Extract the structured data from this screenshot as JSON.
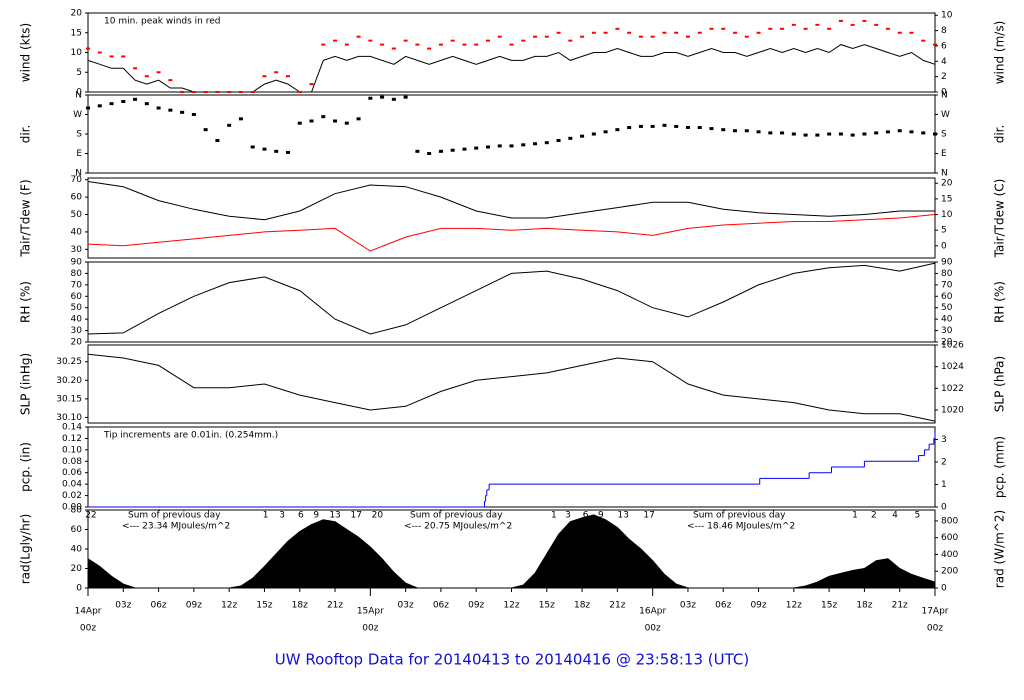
{
  "title": "UW Rooftop Data for 20140413  to  20140416 @ 23:58:13  (UTC)",
  "chart_data": [
    {
      "type": "line",
      "ylabel": "wind (kts)",
      "y2label": "wind (m/s)",
      "annotation": "10 min. peak winds in red",
      "annotation_color": "#ff0000",
      "xlim": [
        0,
        72
      ],
      "ylim": [
        0,
        20
      ],
      "yticks": [
        0,
        5,
        10,
        15,
        20
      ],
      "y2lim": [
        0,
        10.29
      ],
      "y2ticks": [
        0,
        2,
        4,
        6,
        8,
        10
      ],
      "x": [
        0,
        1,
        2,
        3,
        4,
        5,
        6,
        7,
        8,
        9,
        10,
        11,
        12,
        13,
        14,
        15,
        16,
        17,
        18,
        19,
        20,
        21,
        22,
        23,
        24,
        25,
        26,
        27,
        28,
        29,
        30,
        31,
        32,
        33,
        34,
        35,
        36,
        37,
        38,
        39,
        40,
        41,
        42,
        43,
        44,
        45,
        46,
        47,
        48,
        49,
        50,
        51,
        52,
        53,
        54,
        55,
        56,
        57,
        58,
        59,
        60,
        61,
        62,
        63,
        64,
        65,
        66,
        67,
        68,
        69,
        70,
        71,
        72
      ],
      "series": [
        {
          "color": "#000000",
          "style": "line",
          "values": [
            8,
            7,
            6,
            6,
            3,
            2,
            3,
            1,
            1,
            0,
            0,
            0,
            0,
            0,
            0,
            2,
            3,
            2,
            0,
            0,
            8,
            9,
            8,
            9,
            9,
            8,
            7,
            9,
            8,
            7,
            8,
            9,
            8,
            7,
            8,
            9,
            8,
            8,
            9,
            9,
            10,
            8,
            9,
            10,
            10,
            11,
            10,
            9,
            9,
            10,
            10,
            9,
            10,
            11,
            10,
            10,
            9,
            10,
            11,
            10,
            11,
            10,
            11,
            10,
            12,
            11,
            12,
            11,
            10,
            9,
            10,
            8,
            7
          ]
        },
        {
          "color": "#ff0000",
          "style": "points",
          "values": [
            11,
            10,
            9,
            9,
            6,
            4,
            5,
            3,
            0,
            0,
            0,
            0,
            0,
            0,
            0,
            4,
            5,
            4,
            0,
            2,
            12,
            13,
            12,
            14,
            13,
            12,
            11,
            13,
            12,
            11,
            12,
            13,
            12,
            12,
            13,
            14,
            12,
            13,
            14,
            14,
            15,
            13,
            14,
            15,
            15,
            16,
            15,
            14,
            14,
            15,
            15,
            14,
            15,
            16,
            16,
            15,
            14,
            15,
            16,
            16,
            17,
            16,
            17,
            16,
            18,
            17,
            18,
            17,
            16,
            15,
            15,
            13,
            12
          ]
        }
      ]
    },
    {
      "type": "scatter",
      "ylabel": "dir.",
      "y2label": "dir.",
      "xlim": [
        0,
        72
      ],
      "ylim": [
        0,
        360
      ],
      "yticks": [
        {
          "value": 0,
          "label": "N"
        },
        {
          "value": 90,
          "label": "E"
        },
        {
          "value": 180,
          "label": "S"
        },
        {
          "value": 270,
          "label": "W"
        },
        {
          "value": 360,
          "label": "N"
        }
      ],
      "y2lim": [
        0,
        360
      ],
      "y2ticks": [
        {
          "value": 0,
          "label": "N"
        },
        {
          "value": 90,
          "label": "E"
        },
        {
          "value": 180,
          "label": "S"
        },
        {
          "value": 270,
          "label": "W"
        },
        {
          "value": 360,
          "label": "N"
        }
      ],
      "x": [
        0,
        1,
        2,
        3,
        4,
        5,
        6,
        7,
        8,
        9,
        10,
        11,
        12,
        13,
        14,
        15,
        16,
        17,
        18,
        19,
        20,
        21,
        22,
        23,
        24,
        25,
        26,
        27,
        28,
        29,
        30,
        31,
        32,
        33,
        34,
        35,
        36,
        37,
        38,
        39,
        40,
        41,
        42,
        43,
        44,
        45,
        46,
        47,
        48,
        49,
        50,
        51,
        52,
        53,
        54,
        55,
        56,
        57,
        58,
        59,
        60,
        61,
        62,
        63,
        64,
        65,
        66,
        67,
        68,
        69,
        70,
        71,
        72
      ],
      "series": [
        {
          "color": "#000000",
          "values": [
            300,
            310,
            320,
            330,
            340,
            320,
            300,
            290,
            280,
            270,
            200,
            150,
            220,
            250,
            120,
            110,
            100,
            95,
            230,
            240,
            260,
            240,
            230,
            250,
            345,
            350,
            340,
            350,
            100,
            90,
            100,
            105,
            110,
            115,
            120,
            125,
            125,
            130,
            135,
            140,
            150,
            160,
            170,
            180,
            190,
            200,
            210,
            215,
            215,
            220,
            215,
            210,
            210,
            205,
            200,
            195,
            195,
            190,
            185,
            185,
            180,
            175,
            175,
            180,
            180,
            175,
            180,
            185,
            190,
            195,
            190,
            185,
            180
          ]
        }
      ]
    },
    {
      "type": "line",
      "ylabel": "Tair/Tdew (F)",
      "y2label": "Tair/Tdew (C)",
      "xlim": [
        0,
        72
      ],
      "ylim": [
        25,
        71
      ],
      "yticks": [
        30,
        40,
        50,
        60,
        70
      ],
      "y2lim": [
        -3.89,
        21.67
      ],
      "y2ticks": [
        0,
        5,
        10,
        15,
        20
      ],
      "x": [
        0,
        3,
        6,
        9,
        12,
        15,
        18,
        21,
        24,
        27,
        30,
        33,
        36,
        39,
        42,
        45,
        48,
        51,
        54,
        57,
        60,
        63,
        66,
        69,
        72
      ],
      "series": [
        {
          "color": "#000000",
          "values": [
            69,
            66,
            58,
            53,
            49,
            47,
            52,
            62,
            67,
            66,
            60,
            52,
            48,
            48,
            51,
            54,
            57,
            57,
            53,
            51,
            50,
            49,
            50,
            52,
            52
          ]
        },
        {
          "color": "#ff0000",
          "values": [
            33,
            32,
            34,
            36,
            38,
            40,
            41,
            42,
            29,
            37,
            42,
            42,
            41,
            42,
            41,
            40,
            38,
            42,
            44,
            45,
            46,
            46,
            47,
            48,
            50
          ]
        }
      ]
    },
    {
      "type": "line",
      "ylabel": "RH (%)",
      "y2label": "RH (%)",
      "xlim": [
        0,
        72
      ],
      "ylim": [
        20,
        90
      ],
      "yticks": [
        20,
        30,
        40,
        50,
        60,
        70,
        80,
        90
      ],
      "y2lim": [
        20,
        90
      ],
      "y2ticks": [
        20,
        30,
        40,
        50,
        60,
        70,
        80,
        90
      ],
      "x": [
        0,
        3,
        6,
        9,
        12,
        15,
        18,
        21,
        24,
        27,
        30,
        33,
        36,
        39,
        42,
        45,
        48,
        51,
        54,
        57,
        60,
        63,
        66,
        69,
        72
      ],
      "series": [
        {
          "color": "#000000",
          "values": [
            27,
            28,
            45,
            60,
            72,
            77,
            65,
            40,
            27,
            35,
            50,
            65,
            80,
            82,
            75,
            65,
            50,
            42,
            55,
            70,
            80,
            85,
            87,
            82,
            89
          ]
        }
      ]
    },
    {
      "type": "line",
      "ylabel": "SLP (inHg)",
      "y2label": "SLP (hPa)",
      "xlim": [
        0,
        72
      ],
      "ylim": [
        30.085,
        30.295
      ],
      "yticks": [
        {
          "value": 30.1,
          "label": "30.10"
        },
        30.15,
        {
          "value": 30.2,
          "label": "30.20"
        },
        30.25
      ],
      "y2lim": [
        1018.8,
        1026.0
      ],
      "y2ticks": [
        1020,
        1022,
        1024,
        1026
      ],
      "x": [
        0,
        3,
        6,
        9,
        12,
        15,
        18,
        21,
        24,
        27,
        30,
        33,
        36,
        39,
        42,
        45,
        48,
        51,
        54,
        57,
        60,
        63,
        66,
        69,
        72
      ],
      "series": [
        {
          "color": "#000000",
          "values": [
            30.27,
            30.26,
            30.24,
            30.18,
            30.18,
            30.19,
            30.16,
            30.14,
            30.12,
            30.13,
            30.17,
            30.2,
            30.21,
            30.22,
            30.24,
            30.26,
            30.25,
            30.19,
            30.16,
            30.15,
            30.14,
            30.12,
            30.11,
            30.11,
            30.09
          ]
        }
      ]
    },
    {
      "type": "step",
      "ylabel": "pcp. (in)",
      "y2label": "pcp. (mm)",
      "annotation": "Tip increments are 0.01in. (0.254mm.)",
      "annotation_color": "#0000cc",
      "xlim": [
        0,
        72
      ],
      "ylim": [
        0,
        0.14
      ],
      "yticks": [
        {
          "value": 0,
          "label": "0.00"
        },
        0.02,
        0.04,
        0.06,
        0.08,
        {
          "value": 0.1,
          "label": "0.10"
        },
        0.12,
        0.14
      ],
      "y2lim": [
        0,
        3.556
      ],
      "y2ticks": [
        0,
        1,
        2,
        3
      ],
      "x": [
        0,
        33.7,
        33.8,
        33.9,
        34.1,
        57.1,
        61.3,
        63.2,
        66.0,
        70.6,
        71.1,
        71.5,
        71.9,
        72
      ],
      "series": [
        {
          "color": "#0000ff",
          "values": [
            0,
            0.01,
            0.02,
            0.03,
            0.04,
            0.05,
            0.06,
            0.07,
            0.08,
            0.09,
            0.1,
            0.11,
            0.12,
            0.13
          ]
        }
      ]
    },
    {
      "type": "area",
      "ylabel": "rad(Lgly/hr)",
      "y2label": "rad (W/m^2)",
      "annotation_color": "#9900cc",
      "xlim": [
        0,
        72
      ],
      "ylim": [
        0,
        80
      ],
      "yticks": [
        0,
        20,
        40,
        60,
        80
      ],
      "y2lim": [
        0,
        930
      ],
      "y2ticks": [
        0,
        200,
        400,
        600,
        800
      ],
      "annotations": [
        "Sum of previous day",
        "<--- 23.34 MJoules/m^2",
        "Sum of previous day",
        "<--- 20.75 MJoules/m^2",
        "Sum of previous day",
        "<--- 18.46 MJoules/m^2"
      ],
      "x2ticks": [
        {
          "value": 0.25,
          "label": "22"
        },
        {
          "value": 15.1,
          "label": "1"
        },
        {
          "value": 16.5,
          "label": "3"
        },
        {
          "value": 18.1,
          "label": "6"
        },
        {
          "value": 19.4,
          "label": "9"
        },
        {
          "value": 21,
          "label": "13"
        },
        {
          "value": 22.8,
          "label": "17"
        },
        {
          "value": 24.6,
          "label": "20"
        },
        {
          "value": 39.6,
          "label": "1"
        },
        {
          "value": 40.8,
          "label": "3"
        },
        {
          "value": 42.3,
          "label": "6"
        },
        {
          "value": 43.6,
          "label": "9"
        },
        {
          "value": 45.5,
          "label": "13"
        },
        {
          "value": 47.7,
          "label": "17"
        },
        {
          "value": 65.2,
          "label": "1"
        },
        {
          "value": 66.8,
          "label": "2"
        },
        {
          "value": 68.6,
          "label": "4"
        },
        {
          "value": 70.5,
          "label": "5"
        }
      ],
      "xticks": [
        {
          "value": 0,
          "label": "00z"
        },
        {
          "value": 3,
          "label": "03z"
        },
        {
          "value": 6,
          "label": "06z"
        },
        {
          "value": 9,
          "label": "09z"
        },
        {
          "value": 12,
          "label": "12z"
        },
        {
          "value": 15,
          "label": "15z"
        },
        {
          "value": 18,
          "label": "18z"
        },
        {
          "value": 21,
          "label": "21z"
        },
        {
          "value": 24,
          "label": "00z"
        },
        {
          "value": 27,
          "label": "03z"
        },
        {
          "value": 30,
          "label": "06z"
        },
        {
          "value": 33,
          "label": "09z"
        },
        {
          "value": 36,
          "label": "12z"
        },
        {
          "value": 39,
          "label": "15z"
        },
        {
          "value": 42,
          "label": "18z"
        },
        {
          "value": 45,
          "label": "21z"
        },
        {
          "value": 48,
          "label": "00z"
        },
        {
          "value": 51,
          "label": "03z"
        },
        {
          "value": 54,
          "label": "06z"
        },
        {
          "value": 57,
          "label": "09z"
        },
        {
          "value": 60,
          "label": "12z"
        },
        {
          "value": 63,
          "label": "15z"
        },
        {
          "value": 66,
          "label": "18z"
        },
        {
          "value": 69,
          "label": "21z"
        },
        {
          "value": 72,
          "label": "00z"
        }
      ],
      "xdates": [
        {
          "value": 0,
          "label": "14Apr"
        },
        {
          "value": 24,
          "label": "15Apr"
        },
        {
          "value": 48,
          "label": "16Apr"
        },
        {
          "value": 72,
          "label": "17Apr"
        }
      ],
      "major_color": "#ff0000",
      "x": [
        0,
        1,
        2,
        3,
        4,
        5,
        6,
        7,
        8,
        9,
        10,
        11,
        12,
        13,
        14,
        15,
        16,
        17,
        18,
        19,
        20,
        21,
        22,
        23,
        24,
        25,
        26,
        27,
        28,
        29,
        30,
        31,
        32,
        33,
        34,
        35,
        36,
        37,
        38,
        39,
        40,
        41,
        42,
        43,
        44,
        45,
        46,
        47,
        48,
        49,
        50,
        51,
        52,
        53,
        54,
        55,
        56,
        57,
        58,
        59,
        60,
        61,
        62,
        63,
        64,
        65,
        66,
        67,
        68,
        69,
        70,
        71,
        72
      ],
      "series": [
        {
          "color": "#000000",
          "values": [
            30,
            22,
            12,
            4,
            0,
            0,
            0,
            0,
            0,
            0,
            0,
            0,
            0,
            2,
            10,
            22,
            35,
            48,
            58,
            65,
            70,
            68,
            60,
            52,
            42,
            30,
            16,
            5,
            0,
            0,
            0,
            0,
            0,
            0,
            0,
            0,
            0,
            3,
            15,
            35,
            55,
            68,
            72,
            75,
            70,
            62,
            50,
            40,
            28,
            14,
            4,
            0,
            0,
            0,
            0,
            0,
            0,
            0,
            0,
            0,
            0,
            2,
            6,
            12,
            15,
            18,
            20,
            28,
            30,
            20,
            14,
            10,
            6
          ]
        }
      ]
    }
  ]
}
